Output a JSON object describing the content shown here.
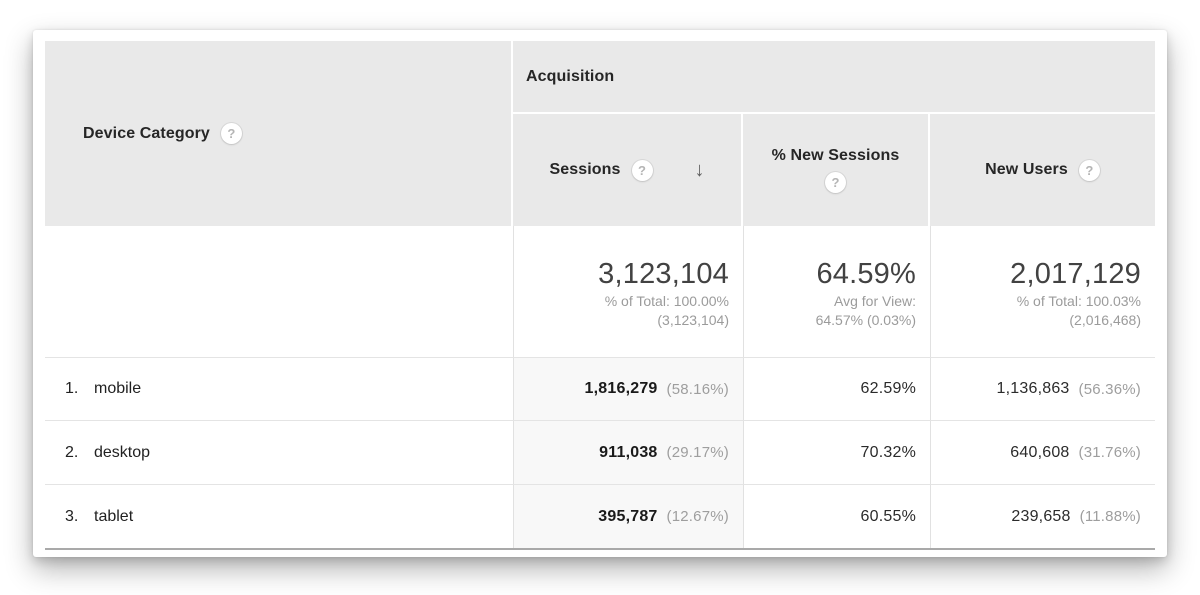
{
  "table": {
    "dimension_header": {
      "label": "Device Category",
      "help_icon": "?"
    },
    "group_header": {
      "label": "Acquisition"
    },
    "metric_headers": {
      "sessions": {
        "label": "Sessions",
        "help_icon": "?",
        "sort_arrow": "↓",
        "sorted": "descending"
      },
      "new_sessions": {
        "label": "% New Sessions",
        "help_icon": "?"
      },
      "new_users": {
        "label": "New Users",
        "help_icon": "?"
      }
    },
    "summary": {
      "sessions": {
        "value": "3,123,104",
        "sub1": "% of Total: 100.00%",
        "sub2": "(3,123,104)"
      },
      "new_sessions": {
        "value": "64.59%",
        "sub1": "Avg for View:",
        "sub2": "64.57% (0.03%)"
      },
      "new_users": {
        "value": "2,017,129",
        "sub1": "% of Total: 100.03%",
        "sub2": "(2,016,468)"
      }
    },
    "rows": [
      {
        "rank": "1.",
        "device": "mobile",
        "sessions": "1,816,279",
        "sessions_share": "(58.16%)",
        "new_sessions": "62.59%",
        "new_users": "1,136,863",
        "new_users_share": "(56.36%)"
      },
      {
        "rank": "2.",
        "device": "desktop",
        "sessions": "911,038",
        "sessions_share": "(29.17%)",
        "new_sessions": "70.32%",
        "new_users": "640,608",
        "new_users_share": "(31.76%)"
      },
      {
        "rank": "3.",
        "device": "tablet",
        "sessions": "395,787",
        "sessions_share": "(12.67%)",
        "new_sessions": "60.55%",
        "new_users": "239,658",
        "new_users_share": "(11.88%)"
      }
    ],
    "colors": {
      "header_bg": "#e9e9e9",
      "sorted_column_bg": "#f8f8f8",
      "primary_text": "#212121",
      "secondary_text": "#9e9e9e"
    }
  }
}
